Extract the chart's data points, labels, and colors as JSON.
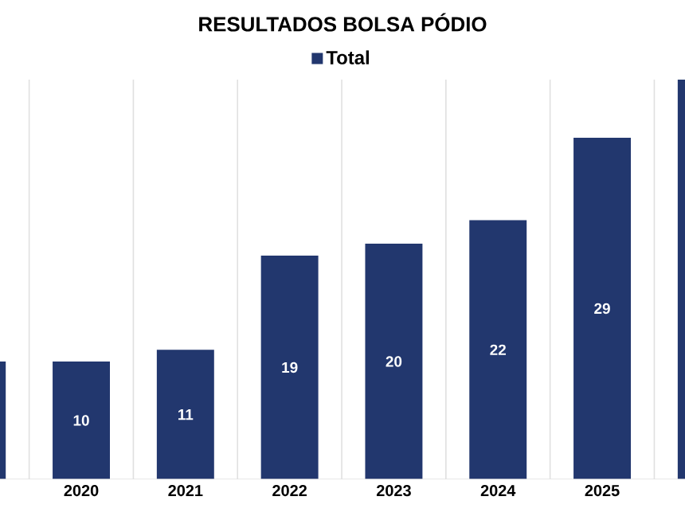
{
  "chart_data": {
    "type": "bar",
    "title": "RESULTADOS BOLSA PÓDIO",
    "categories": [
      null,
      "2020",
      "2021",
      "2022",
      "2023",
      "2024",
      "2025",
      null
    ],
    "series": [
      {
        "name": "Total",
        "color": "#22376e",
        "values": [
          10,
          10,
          11,
          19,
          20,
          22,
          29,
          34
        ],
        "value_labels": [
          null,
          "10",
          "11",
          "19",
          "20",
          "22",
          "29",
          null
        ]
      }
    ],
    "grid": "x",
    "legend": "top"
  }
}
